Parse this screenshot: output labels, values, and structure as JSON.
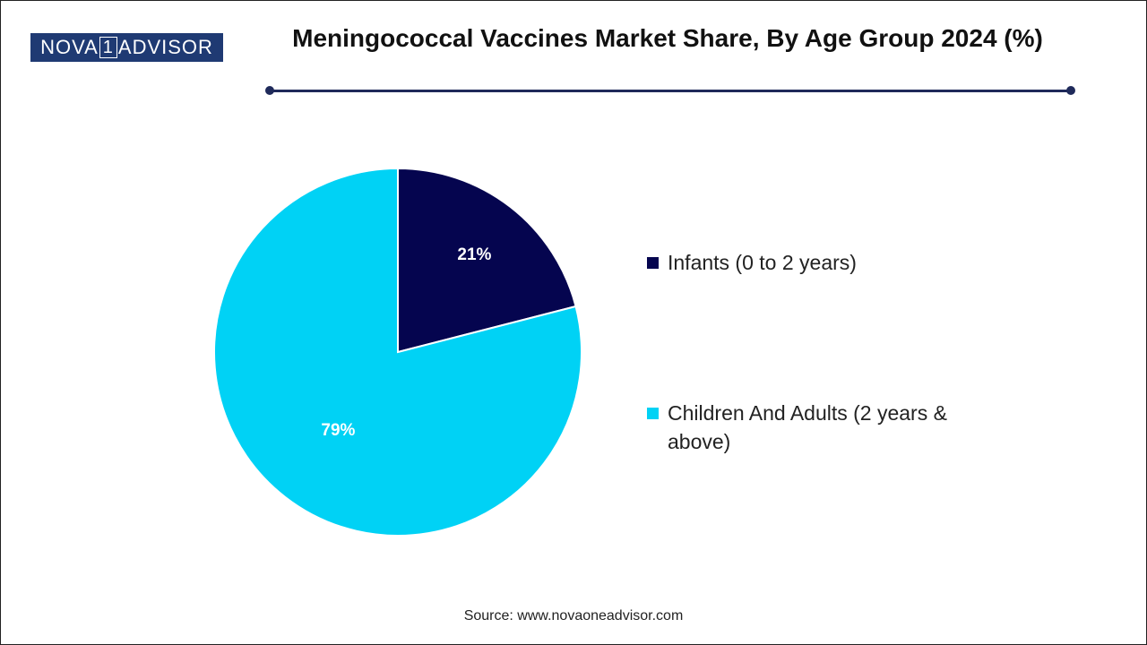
{
  "header": {
    "logo_left": "NOVA",
    "logo_mid": "1",
    "logo_right": "ADVISOR",
    "title": "Meningococcal Vaccines Market Share, By Age Group 2024 (%)"
  },
  "chart_data": {
    "type": "pie",
    "title": "Meningococcal Vaccines Market Share, By Age Group 2024 (%)",
    "slices": [
      {
        "label": "Infants (0 to 2 years)",
        "value": 21,
        "display": "21%",
        "color": "#05054f"
      },
      {
        "label": "Children And Adults (2 years & above)",
        "value": 79,
        "display": "79%",
        "color": "#00d2f5"
      }
    ],
    "legend_position": "right"
  },
  "footer": {
    "source": "Source: www.novaoneadvisor.com"
  }
}
